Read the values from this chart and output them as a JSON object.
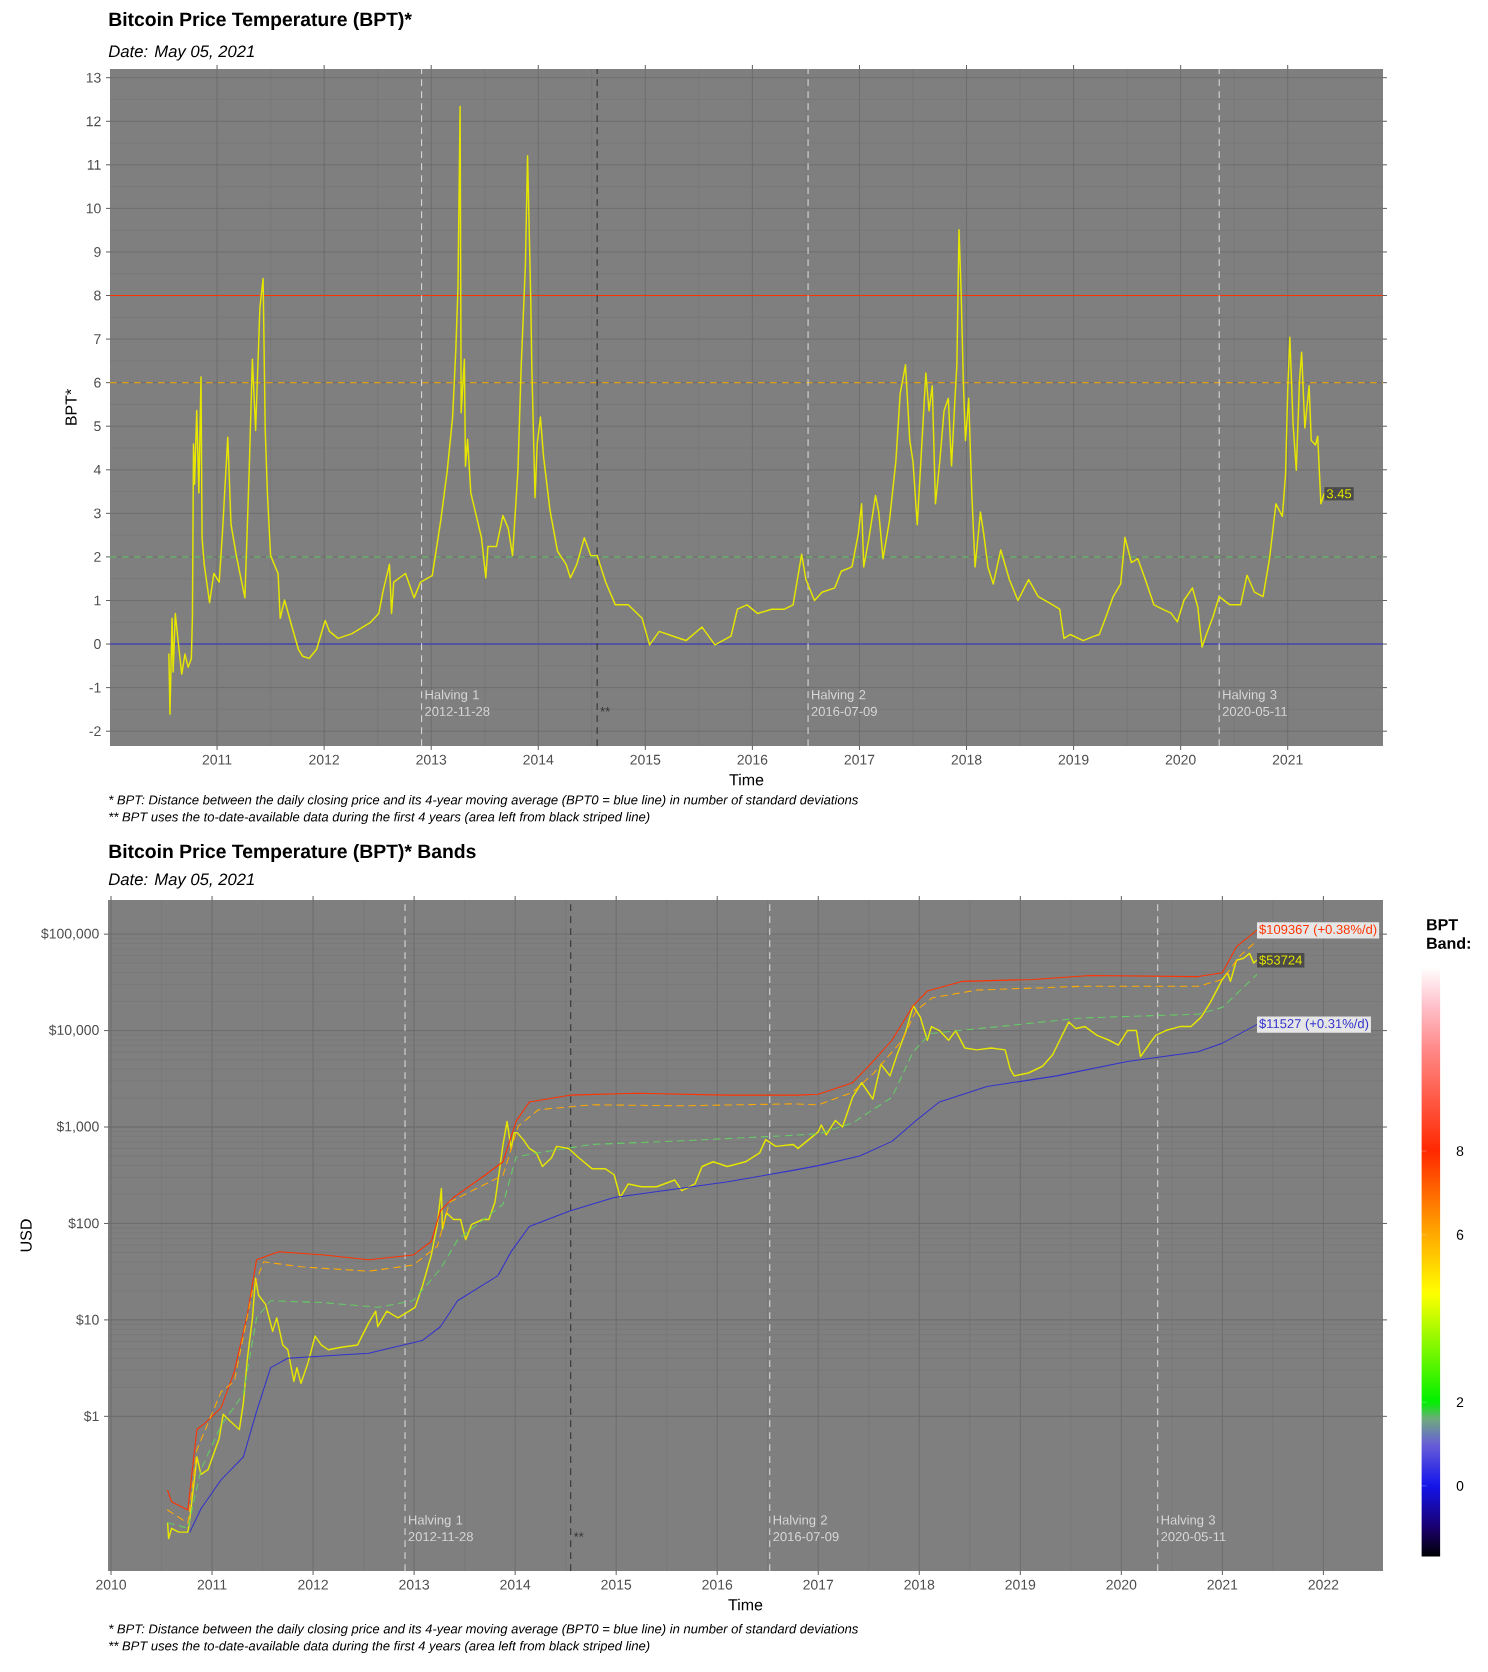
{
  "chart_data": [
    {
      "type": "line",
      "title": "Bitcoin Price Temperature (BPT)*",
      "subtitle": "Date: May 05, 2021",
      "xlabel": "Time",
      "ylabel": "BPT*",
      "xlim": [
        2010.0,
        2021.89
      ],
      "ylim": [
        -2.34,
        13.2
      ],
      "xticks": [
        2011,
        2012,
        2013,
        2014,
        2015,
        2016,
        2017,
        2018,
        2019,
        2020,
        2021
      ],
      "yticks": [
        -2,
        -1,
        0,
        1,
        2,
        3,
        4,
        5,
        6,
        7,
        8,
        9,
        10,
        11,
        12,
        13
      ],
      "grid": true,
      "series": [
        {
          "color": "#e6e600",
          "line_style": "solid",
          "x": [
            2010.55,
            2010.56,
            2010.58,
            2010.59,
            2010.61,
            2010.64,
            2010.67,
            2010.7,
            2010.73,
            2010.76,
            2010.77,
            2010.78,
            2010.79,
            2010.81,
            2010.83,
            2010.85,
            2010.86,
            2010.88,
            2010.93,
            2010.97,
            2011.02,
            2011.05,
            2011.1,
            2011.13,
            2011.18,
            2011.23,
            2011.26,
            2011.3,
            2011.33,
            2011.36,
            2011.4,
            2011.43,
            2011.45,
            2011.47,
            2011.5,
            2011.57,
            2011.59,
            2011.63,
            2011.7,
            2011.76,
            2011.8,
            2011.86,
            2011.93,
            2012.01,
            2012.05,
            2012.13,
            2012.26,
            2012.43,
            2012.51,
            2012.55,
            2012.61,
            2012.63,
            2012.65,
            2012.76,
            2012.84,
            2012.9,
            2013.01,
            2013.09,
            2013.15,
            2013.2,
            2013.23,
            2013.25,
            2013.27,
            2013.28,
            2013.31,
            2013.32,
            2013.34,
            2013.37,
            2013.43,
            2013.47,
            2013.51,
            2013.53,
            2013.61,
            2013.67,
            2013.72,
            2013.76,
            2013.81,
            2013.84,
            2013.88,
            2013.9,
            2013.93,
            2013.94,
            2013.97,
            2013.99,
            2014.02,
            2014.05,
            2014.11,
            2014.18,
            2014.26,
            2014.3,
            2014.36,
            2014.43,
            2014.49,
            2014.55,
            2014.63,
            2014.72,
            2014.84,
            2014.97,
            2015.04,
            2015.13,
            2015.26,
            2015.38,
            2015.53,
            2015.65,
            2015.8,
            2015.86,
            2015.95,
            2016.05,
            2016.18,
            2016.3,
            2016.38,
            2016.46,
            2016.5,
            2016.58,
            2016.65,
            2016.77,
            2016.83,
            2016.93,
            2016.99,
            2017.02,
            2017.04,
            2017.09,
            2017.15,
            2017.18,
            2017.22,
            2017.28,
            2017.34,
            2017.38,
            2017.43,
            2017.47,
            2017.5,
            2017.54,
            2017.58,
            2017.62,
            2017.65,
            2017.68,
            2017.71,
            2017.75,
            2017.79,
            2017.83,
            2017.86,
            2017.89,
            2017.91,
            2017.93,
            2017.95,
            2017.97,
            2017.99,
            2018.02,
            2018.05,
            2018.08,
            2018.13,
            2018.16,
            2018.2,
            2018.25,
            2018.32,
            2018.4,
            2018.48,
            2018.58,
            2018.67,
            2018.77,
            2018.87,
            2018.91,
            2018.97,
            2019.09,
            2019.18,
            2019.24,
            2019.3,
            2019.37,
            2019.44,
            2019.48,
            2019.54,
            2019.6,
            2019.67,
            2019.75,
            2019.83,
            2019.91,
            2019.97,
            2020.03,
            2020.11,
            2020.16,
            2020.2,
            2020.24,
            2020.3,
            2020.36,
            2020.46,
            2020.56,
            2020.62,
            2020.69,
            2020.77,
            2020.83,
            2020.89,
            2020.95,
            2020.98,
            2021.0,
            2021.02,
            2021.05,
            2021.08,
            2021.11,
            2021.13,
            2021.16,
            2021.2,
            2021.22,
            2021.26,
            2021.28,
            2021.31,
            2021.34
          ],
          "values": [
            -0.23,
            -1.61,
            0.59,
            -0.64,
            0.7,
            -0.02,
            -0.69,
            -0.23,
            -0.53,
            -0.33,
            0.65,
            4.59,
            3.67,
            5.36,
            3.47,
            6.13,
            2.44,
            1.83,
            0.95,
            1.62,
            1.42,
            2.54,
            4.75,
            2.75,
            2.03,
            1.42,
            1.06,
            3.98,
            6.54,
            4.9,
            7.72,
            8.39,
            4.9,
            3.47,
            2.03,
            1.62,
            0.59,
            1.01,
            0.39,
            -0.12,
            -0.28,
            -0.33,
            -0.12,
            0.54,
            0.29,
            0.13,
            0.24,
            0.49,
            0.7,
            1.21,
            1.83,
            0.7,
            1.42,
            1.62,
            1.06,
            1.42,
            1.57,
            2.85,
            3.98,
            5.21,
            6.75,
            8.18,
            12.34,
            5.31,
            6.54,
            4.08,
            4.7,
            3.47,
            2.85,
            2.44,
            1.52,
            2.24,
            2.24,
            2.95,
            2.65,
            2.03,
            3.98,
            6.34,
            8.7,
            11.21,
            7.88,
            6.34,
            3.36,
            4.59,
            5.21,
            4.29,
            3.06,
            2.13,
            1.83,
            1.52,
            1.83,
            2.44,
            2.03,
            2.03,
            1.42,
            0.9,
            0.9,
            0.59,
            -0.02,
            0.29,
            0.18,
            0.08,
            0.39,
            -0.02,
            0.18,
            0.8,
            0.9,
            0.7,
            0.8,
            0.8,
            0.9,
            2.06,
            1.48,
            1.0,
            1.19,
            1.29,
            1.67,
            1.77,
            2.54,
            3.22,
            1.77,
            2.45,
            3.41,
            3.03,
            1.96,
            2.83,
            4.19,
            5.74,
            6.41,
            4.67,
            4.19,
            2.74,
            4.48,
            6.22,
            5.35,
            5.93,
            3.22,
            4.19,
            5.35,
            5.64,
            4.09,
            5.54,
            6.41,
            9.51,
            8.06,
            6.03,
            4.67,
            5.64,
            3.41,
            1.77,
            3.03,
            2.54,
            1.77,
            1.38,
            2.16,
            1.48,
            1.0,
            1.48,
            1.09,
            0.95,
            0.8,
            0.13,
            0.22,
            0.08,
            0.17,
            0.22,
            0.61,
            1.09,
            1.38,
            2.45,
            1.87,
            1.96,
            1.48,
            0.9,
            0.8,
            0.71,
            0.51,
            1.0,
            1.29,
            0.85,
            -0.07,
            0.22,
            0.61,
            1.09,
            0.9,
            0.9,
            1.58,
            1.19,
            1.09,
            1.96,
            3.22,
            2.93,
            3.9,
            5.83,
            7.04,
            5.06,
            3.99,
            6.03,
            6.7,
            4.96,
            5.93,
            4.67,
            4.57,
            4.77,
            3.22,
            3.45
          ],
          "value_labels": [
            null,
            null,
            null,
            null,
            null,
            null,
            null,
            null,
            null,
            null,
            null,
            null,
            null,
            null,
            null,
            null,
            null,
            null,
            null,
            null,
            null,
            null,
            null,
            null,
            null,
            null,
            null,
            null,
            null,
            null,
            null,
            null,
            null,
            null,
            null,
            null,
            null,
            null,
            null,
            null,
            null,
            null,
            null,
            null,
            null,
            null,
            null,
            null,
            null,
            null,
            null,
            null,
            null,
            null,
            null,
            null,
            null,
            null,
            null,
            null,
            null,
            null,
            null,
            null,
            null,
            null,
            null,
            null,
            null,
            null,
            null,
            null,
            null,
            null,
            null,
            null,
            null,
            null,
            null,
            null,
            null,
            null,
            null,
            null,
            null,
            null,
            null,
            null,
            null,
            null,
            null,
            null,
            null,
            null,
            null,
            null,
            null,
            null,
            null,
            null,
            null,
            null,
            null,
            null,
            null,
            null,
            null,
            null,
            null,
            null,
            null,
            null,
            null,
            null,
            null,
            null,
            null,
            null,
            null,
            null,
            null,
            null,
            null,
            null,
            null,
            null,
            null,
            null,
            null,
            null,
            null,
            null,
            null,
            null,
            null,
            null,
            null,
            null,
            null,
            null,
            null,
            null,
            null,
            null,
            null,
            null,
            null,
            null,
            null,
            null,
            null,
            null,
            null,
            null,
            null,
            null,
            null,
            null,
            null,
            null,
            null,
            null,
            null,
            null,
            null,
            null,
            null,
            null,
            null,
            null,
            null,
            null,
            null,
            null,
            null,
            null,
            null,
            null,
            null,
            null,
            null,
            null,
            null,
            null,
            null,
            null,
            null,
            null,
            null,
            null,
            null,
            null,
            null,
            null,
            null,
            null,
            null,
            null,
            null,
            null,
            null,
            null,
            null,
            null,
            null,
            "3.45"
          ]
        }
      ],
      "ref_lines": [
        {
          "axis": "y",
          "value": 8,
          "color": "#ff3300",
          "line_style": "solid"
        },
        {
          "axis": "y",
          "value": 6,
          "color": "#ffaa00",
          "line_style": "dashed"
        },
        {
          "axis": "y",
          "value": 2,
          "color": "#66cc66",
          "line_style": "dashed"
        },
        {
          "axis": "y",
          "value": 0,
          "color": "#3333cc",
          "line_style": "solid"
        },
        {
          "axis": "x",
          "value": 2012.91,
          "label": "Halving 1 2012-11-28",
          "color": "#d9d9d9",
          "line_style": "dashed"
        },
        {
          "axis": "x",
          "value": 2014.55,
          "label": "**",
          "color": "#333333",
          "line_style": "dashed"
        },
        {
          "axis": "x",
          "value": 2016.52,
          "label": "Halving 2 2016-07-09",
          "color": "#d9d9d9",
          "line_style": "dashed"
        },
        {
          "axis": "x",
          "value": 2020.36,
          "label": "Halving 3 2020-05-11",
          "color": "#d9d9d9",
          "line_style": "dashed"
        }
      ],
      "annotations": [
        "* BPT: Distance between the daily closing price and its 4-year moving average (BPT0 = blue line) in number of standard deviations",
        "** BPT uses the to-date-available data during the first 4 years (area left from black striped line)"
      ]
    },
    {
      "type": "line",
      "title": "Bitcoin Price Temperature (BPT)* Bands",
      "subtitle": "Date: May 05, 2021",
      "xlabel": "Time",
      "ylabel": "USD",
      "log": "y",
      "xlim": [
        2009.97,
        2022.59
      ],
      "ylim": [
        0.0249,
        226000
      ],
      "xticks": [
        2010,
        2011,
        2012,
        2013,
        2014,
        2015,
        2016,
        2017,
        2018,
        2019,
        2020,
        2021,
        2022
      ],
      "yticks": [
        {
          "value": 1,
          "label": "$1"
        },
        {
          "value": 10,
          "label": "$10"
        },
        {
          "value": 100,
          "label": "$100"
        },
        {
          "value": 1000,
          "label": "$1,000"
        },
        {
          "value": 10000,
          "label": "$10,000"
        },
        {
          "value": 100000,
          "label": "$100,000"
        }
      ],
      "grid": true,
      "clabel": "BPT Band:",
      "clim": [
        -1.7,
        12.4
      ],
      "cticks": [
        0,
        2,
        6,
        8
      ],
      "series": [
        {
          "x": [
            2010.56,
            2010.57,
            2010.6,
            2010.67,
            2010.76,
            2010.78,
            2010.82,
            2010.85,
            2010.89,
            2010.96,
            2011.07,
            2011.11,
            2011.18,
            2011.27,
            2011.31,
            2011.35,
            2011.4,
            2011.43,
            2011.46,
            2011.53,
            2011.6,
            2011.64,
            2011.7,
            2011.75,
            2011.81,
            2011.84,
            2011.88,
            2011.95,
            2012.02,
            2012.08,
            2012.15,
            2012.28,
            2012.44,
            2012.55,
            2012.62,
            2012.64,
            2012.73,
            2012.84,
            2012.95,
            2013.01,
            2013.08,
            2013.17,
            2013.23,
            2013.27,
            2013.28,
            2013.32,
            2013.39,
            2013.46,
            2013.51,
            2013.57,
            2013.68,
            2013.74,
            2013.8,
            2013.85,
            2013.88,
            2013.92,
            2013.96,
            2013.99,
            2014.02,
            2014.08,
            2014.14,
            2014.21,
            2014.27,
            2014.36,
            2014.41,
            2014.53,
            2014.63,
            2014.76,
            2014.89,
            2014.98,
            2015.04,
            2015.12,
            2015.25,
            2015.4,
            2015.58,
            2015.65,
            2015.78,
            2015.85,
            2015.96,
            2016.1,
            2016.28,
            2016.42,
            2016.48,
            2016.58,
            2016.75,
            2016.8,
            2017.0,
            2017.03,
            2017.08,
            2017.17,
            2017.24,
            2017.34,
            2017.43,
            2017.54,
            2017.62,
            2017.71,
            2017.78,
            2017.87,
            2017.94,
            2018.01,
            2018.08,
            2018.12,
            2018.2,
            2018.29,
            2018.36,
            2018.45,
            2018.57,
            2018.71,
            2018.85,
            2018.9,
            2018.94,
            2019.08,
            2019.22,
            2019.32,
            2019.39,
            2019.48,
            2019.55,
            2019.64,
            2019.76,
            2019.88,
            2019.97,
            2020.06,
            2020.15,
            2020.19,
            2020.27,
            2020.34,
            2020.44,
            2020.58,
            2020.69,
            2020.79,
            2020.88,
            2021.0,
            2021.05,
            2021.08,
            2021.14,
            2021.21,
            2021.27,
            2021.31,
            2021.34
          ],
          "values": [
            0.078,
            0.054,
            0.069,
            0.063,
            0.063,
            0.087,
            0.2,
            0.38,
            0.25,
            0.28,
            0.59,
            1.05,
            0.89,
            0.73,
            1.38,
            4.0,
            10.5,
            27,
            18,
            14.5,
            7.6,
            10.5,
            5.5,
            4.9,
            2.3,
            3.2,
            2.2,
            3.6,
            6.8,
            5.5,
            4.9,
            5.2,
            5.5,
            9.3,
            12.3,
            8.5,
            12.3,
            10.5,
            12.3,
            13.5,
            22,
            47,
            98,
            230,
            87,
            129,
            110,
            110,
            68,
            98,
            110,
            110,
            166,
            390,
            660,
            1140,
            600,
            870,
            870,
            740,
            600,
            540,
            390,
            480,
            630,
            600,
            480,
            370,
            370,
            320,
            186,
            257,
            240,
            240,
            282,
            219,
            257,
            390,
            436,
            390,
            436,
            540,
            740,
            630,
            660,
            600,
            890,
            1050,
            830,
            1170,
            1000,
            2040,
            2880,
            1950,
            4470,
            3390,
            5620,
            10000,
            18200,
            13800,
            7940,
            11000,
            10000,
            7940,
            10000,
            6610,
            6310,
            6610,
            6310,
            3980,
            3390,
            3630,
            4270,
            5620,
            7940,
            12300,
            10500,
            11000,
            8910,
            7940,
            7080,
            10000,
            10000,
            5370,
            7080,
            8910,
            10000,
            11000,
            11000,
            13800,
            19500,
            33900,
            39800,
            32400,
            53700,
            56200,
            63100,
            50100,
            53724
          ],
          "color": "#e6e600",
          "line_style": "solid",
          "value_labels": [
            null,
            null,
            null,
            null,
            null,
            null,
            null,
            null,
            null,
            null,
            null,
            null,
            null,
            null,
            null,
            null,
            null,
            null,
            null,
            null,
            null,
            null,
            null,
            null,
            null,
            null,
            null,
            null,
            null,
            null,
            null,
            null,
            null,
            null,
            null,
            null,
            null,
            null,
            null,
            null,
            null,
            null,
            null,
            null,
            null,
            null,
            null,
            null,
            null,
            null,
            null,
            null,
            null,
            null,
            null,
            null,
            null,
            null,
            null,
            null,
            null,
            null,
            null,
            null,
            null,
            null,
            null,
            null,
            null,
            null,
            null,
            null,
            null,
            null,
            null,
            null,
            null,
            null,
            null,
            null,
            null,
            null,
            null,
            null,
            null,
            null,
            null,
            null,
            null,
            null,
            null,
            null,
            null,
            null,
            null,
            null,
            null,
            null,
            null,
            null,
            null,
            null,
            null,
            null,
            null,
            null,
            null,
            null,
            null,
            null,
            null,
            null,
            null,
            null,
            null,
            null,
            null,
            null,
            null,
            null,
            null,
            null,
            null,
            null,
            null,
            null,
            null,
            null,
            null,
            null,
            null,
            null,
            null,
            null,
            null,
            null,
            null,
            null,
            "$53724"
          ]
        },
        {
          "color": "#ff3300",
          "line_style": "solid",
          "x": [
            2010.56,
            2010.6,
            2010.76,
            2010.85,
            2010.93,
            2011.09,
            2011.22,
            2011.35,
            2011.44,
            2011.66,
            2012.11,
            2012.55,
            2012.99,
            2013.17,
            2013.26,
            2013.39,
            2013.7,
            2013.88,
            2014.01,
            2014.14,
            2014.54,
            2015.2,
            2016.09,
            2016.8,
            2017.0,
            2017.34,
            2017.5,
            2017.73,
            2017.94,
            2018.08,
            2018.43,
            2019.13,
            2019.69,
            2020.76,
            2021.0,
            2021.14,
            2021.34
          ],
          "values": [
            0.17,
            0.13,
            0.107,
            0.73,
            0.85,
            1.23,
            2.9,
            11.5,
            42,
            51,
            47,
            42,
            47,
            65,
            135,
            186,
            316,
            436,
            1150,
            1820,
            2140,
            2240,
            2140,
            2140,
            2190,
            2880,
            4270,
            7940,
            18200,
            25700,
            32400,
            33900,
            37200,
            36300,
            39800,
            74100,
            109367
          ],
          "value_labels": [
            null,
            null,
            null,
            null,
            null,
            null,
            null,
            null,
            null,
            null,
            null,
            null,
            null,
            null,
            null,
            null,
            null,
            null,
            null,
            null,
            null,
            null,
            null,
            null,
            null,
            null,
            null,
            null,
            null,
            null,
            null,
            null,
            null,
            null,
            null,
            null,
            "$109367 (+0.38%/d)"
          ]
        },
        {
          "color": "#ffaa00",
          "line_style": "dashed",
          "x": [
            2010.56,
            2010.76,
            2010.85,
            2011.09,
            2011.22,
            2011.4,
            2011.51,
            2011.88,
            2012.55,
            2012.99,
            2013.23,
            2013.35,
            2013.65,
            2013.88,
            2014.03,
            2014.23,
            2014.76,
            2015.65,
            2016.75,
            2017.0,
            2017.34,
            2017.55,
            2017.83,
            2017.97,
            2018.13,
            2018.57,
            2019.6,
            2020.76,
            2021.0,
            2021.18,
            2021.34
          ],
          "values": [
            0.107,
            0.078,
            0.45,
            1.8,
            2.3,
            20,
            40,
            35.5,
            32,
            37,
            58,
            166,
            240,
            316,
            1020,
            1510,
            1700,
            1660,
            1740,
            1700,
            2290,
            3630,
            7940,
            16200,
            21900,
            26300,
            28800,
            28800,
            33900,
            60300,
            85100
          ]
        },
        {
          "color": "#66cc66",
          "line_style": "dashed",
          "x": [
            2010.56,
            2010.76,
            2010.89,
            2011.09,
            2011.31,
            2011.44,
            2011.58,
            2012.11,
            2012.64,
            2012.99,
            2013.26,
            2013.43,
            2013.88,
            2014.01,
            2014.23,
            2014.76,
            2015.65,
            2016.75,
            2017.0,
            2017.34,
            2017.73,
            2017.94,
            2018.11,
            2018.67,
            2019.6,
            2020.76,
            2021.0,
            2021.34
          ],
          "values": [
            0.079,
            0.069,
            0.28,
            0.81,
            1.7,
            10.5,
            15.8,
            15.1,
            13.5,
            15.8,
            33.7,
            67.6,
            158,
            490,
            540,
            660,
            720,
            820,
            850,
            1100,
            2040,
            6030,
            9330,
            10700,
            13500,
            14800,
            17400,
            38000
          ]
        },
        {
          "color": "#3333cc",
          "line_style": "solid",
          "x": [
            2010.78,
            2010.89,
            2011.09,
            2011.31,
            2011.44,
            2011.58,
            2011.75,
            2012.55,
            2013.08,
            2013.26,
            2013.43,
            2013.83,
            2013.96,
            2014.14,
            2014.54,
            2014.98,
            2016.09,
            2016.75,
            2017.0,
            2017.41,
            2017.73,
            2017.97,
            2018.2,
            2018.67,
            2019.36,
            2020.06,
            2020.76,
            2021.0,
            2021.34
          ],
          "values": [
            0.063,
            0.11,
            0.22,
            0.38,
            1.12,
            3.2,
            4.0,
            4.5,
            6.1,
            8.5,
            15.8,
            28.8,
            51,
            93,
            135,
            186,
            269,
            355,
            398,
            500,
            710,
            1170,
            1820,
            2630,
            3390,
            4790,
            6030,
            7410,
            11527
          ],
          "value_labels": [
            null,
            null,
            null,
            null,
            null,
            null,
            null,
            null,
            null,
            null,
            null,
            null,
            null,
            null,
            null,
            null,
            null,
            null,
            null,
            null,
            null,
            null,
            null,
            null,
            null,
            null,
            null,
            null,
            "$11527 (+0.31%/d)"
          ]
        }
      ],
      "ref_lines": [
        {
          "axis": "x",
          "value": 2012.91,
          "label": "Halving 1 2012-11-28",
          "color": "#d9d9d9",
          "line_style": "dashed"
        },
        {
          "axis": "x",
          "value": 2014.55,
          "label": "**",
          "color": "#333333",
          "line_style": "dashed"
        },
        {
          "axis": "x",
          "value": 2016.52,
          "label": "Halving 2 2016-07-09",
          "color": "#d9d9d9",
          "line_style": "dashed"
        },
        {
          "axis": "x",
          "value": 2020.36,
          "label": "Halving 3 2020-05-11",
          "color": "#d9d9d9",
          "line_style": "dashed"
        }
      ],
      "annotations": [
        "* BPT: Distance between the daily closing price and its 4-year moving average (BPT0 = blue line) in number of standard deviations",
        "** BPT uses the to-date-available data during the first 4 years (area left from black striped line)"
      ]
    }
  ]
}
